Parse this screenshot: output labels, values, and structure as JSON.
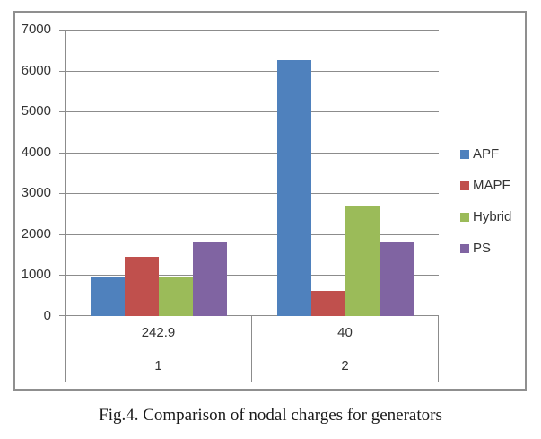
{
  "figure": {
    "caption": "Fig.4. Comparison of nodal charges for generators"
  },
  "chart_data": {
    "type": "bar",
    "title": "",
    "categories": [
      "242.9",
      "40"
    ],
    "category_group_labels": [
      "1",
      "2"
    ],
    "series": [
      {
        "name": "APF",
        "color": "#4f81bd",
        "values": [
          950,
          6250
        ]
      },
      {
        "name": "MAPF",
        "color": "#c0504d",
        "values": [
          1450,
          620
        ]
      },
      {
        "name": "Hybrid",
        "color": "#9bbb59",
        "values": [
          950,
          2700
        ]
      },
      {
        "name": "PS",
        "color": "#8064a2",
        "values": [
          1800,
          1800
        ]
      }
    ],
    "ylim": [
      0,
      7000
    ],
    "ytick_step": 1000,
    "ytick_labels": [
      "0",
      "1000",
      "2000",
      "3000",
      "4000",
      "5000",
      "6000",
      "7000"
    ],
    "grid": true,
    "legend_position": "right",
    "legend_labels": [
      "APF",
      "MAPF",
      "Hybrid",
      "PS"
    ]
  }
}
